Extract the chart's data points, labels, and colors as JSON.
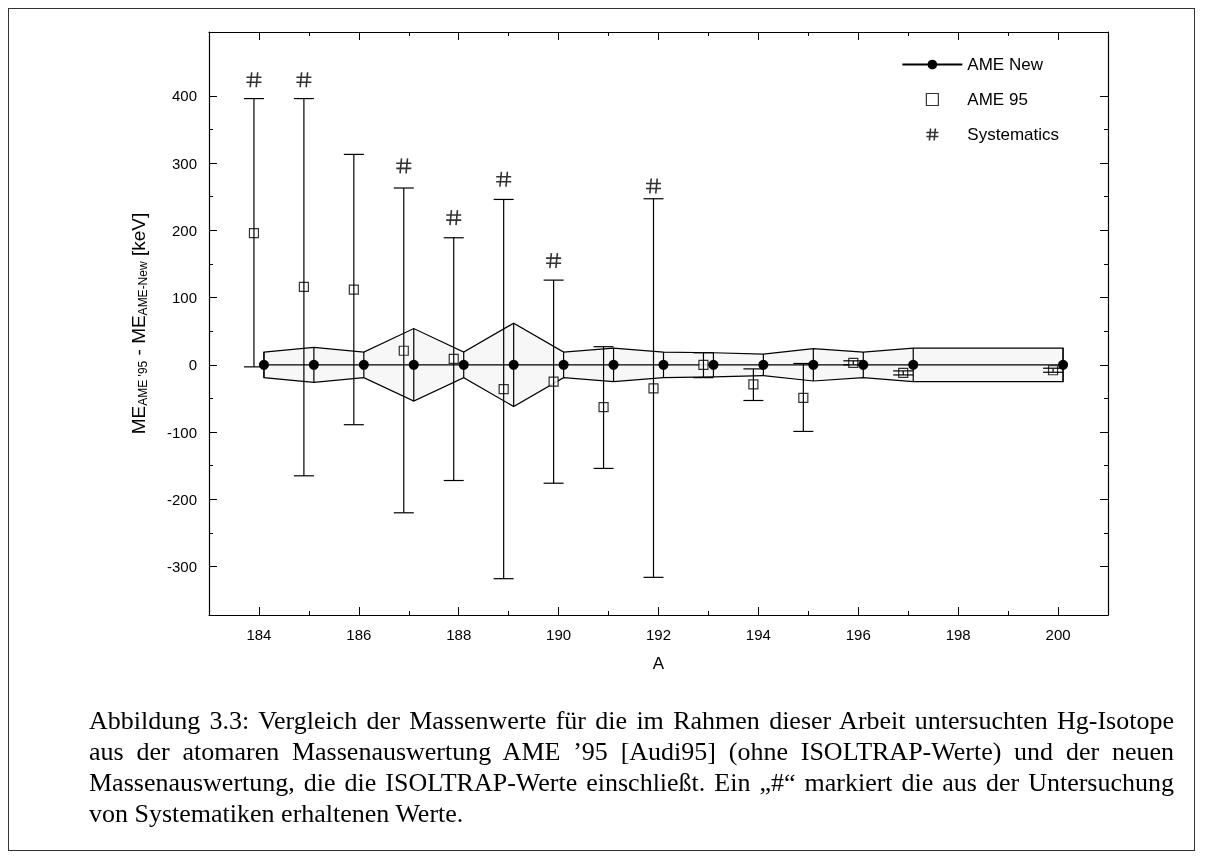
{
  "chart_data": {
    "type": "scatter",
    "xlabel": "A",
    "ylabel": "ME$_{AME '95}$ - ME$_{AME-New}$ [keV]",
    "xlim": [
      183,
      201
    ],
    "xticks": [
      184,
      186,
      188,
      190,
      192,
      194,
      196,
      198,
      200
    ],
    "ylim": [
      -372,
      495
    ],
    "yticks": [
      -300,
      -200,
      -100,
      0,
      100,
      200,
      300,
      400
    ],
    "legend": "top right",
    "grid": false,
    "series": [
      {
        "name": "AME New",
        "type": "line",
        "color": "#000000",
        "marker": "circle",
        "line_style": "solid",
        "x": [
          184.1,
          185.1,
          186.1,
          187.1,
          188.1,
          189.1,
          190.1,
          191.1,
          192.1,
          193.1,
          194.1,
          195.1,
          196.1,
          197.1,
          200.1
        ],
        "values": [
          0,
          0,
          0,
          0,
          0,
          0,
          0,
          0,
          0,
          0,
          0,
          0,
          0,
          0,
          0
        ],
        "errors": [
          19,
          26,
          19,
          54,
          19,
          62,
          19,
          25,
          19,
          18,
          16,
          24,
          19,
          25,
          25
        ],
        "upper": [
          19,
          26,
          19,
          54,
          19,
          62,
          19,
          25,
          19,
          18,
          16,
          24,
          19,
          25,
          25
        ],
        "lower": [
          -19,
          -26,
          -19,
          -54,
          -19,
          -62,
          -19,
          -25,
          -19,
          -18,
          -16,
          -24,
          -19,
          -25,
          -25
        ]
      },
      {
        "name": "AME 95",
        "color": "#000000",
        "marker": "square",
        "x": [
          183.9,
          184.9,
          185.9,
          186.9,
          187.9,
          188.9,
          189.9,
          190.9,
          191.9,
          192.9,
          193.9,
          194.9,
          195.9,
          196.9,
          199.9
        ],
        "values": [
          196,
          116,
          112,
          21,
          9,
          -36,
          -25,
          -63,
          -35,
          0,
          -29,
          -49,
          3,
          -12,
          -8
        ],
        "errors": [
          [
            -3,
            396
          ],
          [
            -165,
            396
          ],
          [
            -89,
            313
          ],
          [
            -220,
            263
          ],
          [
            -172,
            189
          ],
          [
            -318,
            246
          ],
          [
            -176,
            126
          ],
          [
            -154,
            27
          ],
          [
            -316,
            247
          ],
          [
            -19,
            18
          ],
          [
            -53,
            -6
          ],
          [
            -99,
            2
          ],
          3,
          3,
          3
        ]
      },
      {
        "name": "Systematics",
        "color": "#000000",
        "x": [
          183.9,
          184.9,
          186.9,
          187.9,
          188.9,
          189.9,
          191.9
        ],
        "values": [
          424,
          424,
          296,
          219,
          276,
          155,
          266
        ]
      }
    ],
    "annotations": [
      "Abbildung 3.3: Vergleich der Massenwerte für die im Rahmen dieser Arbeit untersuchten Hg-Isotope aus der atomaren Massenauswertung AME ’95 [Audi95] (ohne ISOLTRAP-Werte) und der neuen Massenauswertung, die die ISOLTRAP-Werte einschließt. Ein „#“ markiert die aus der Untersuchung von Systematiken erhaltenen Werte."
    ]
  }
}
